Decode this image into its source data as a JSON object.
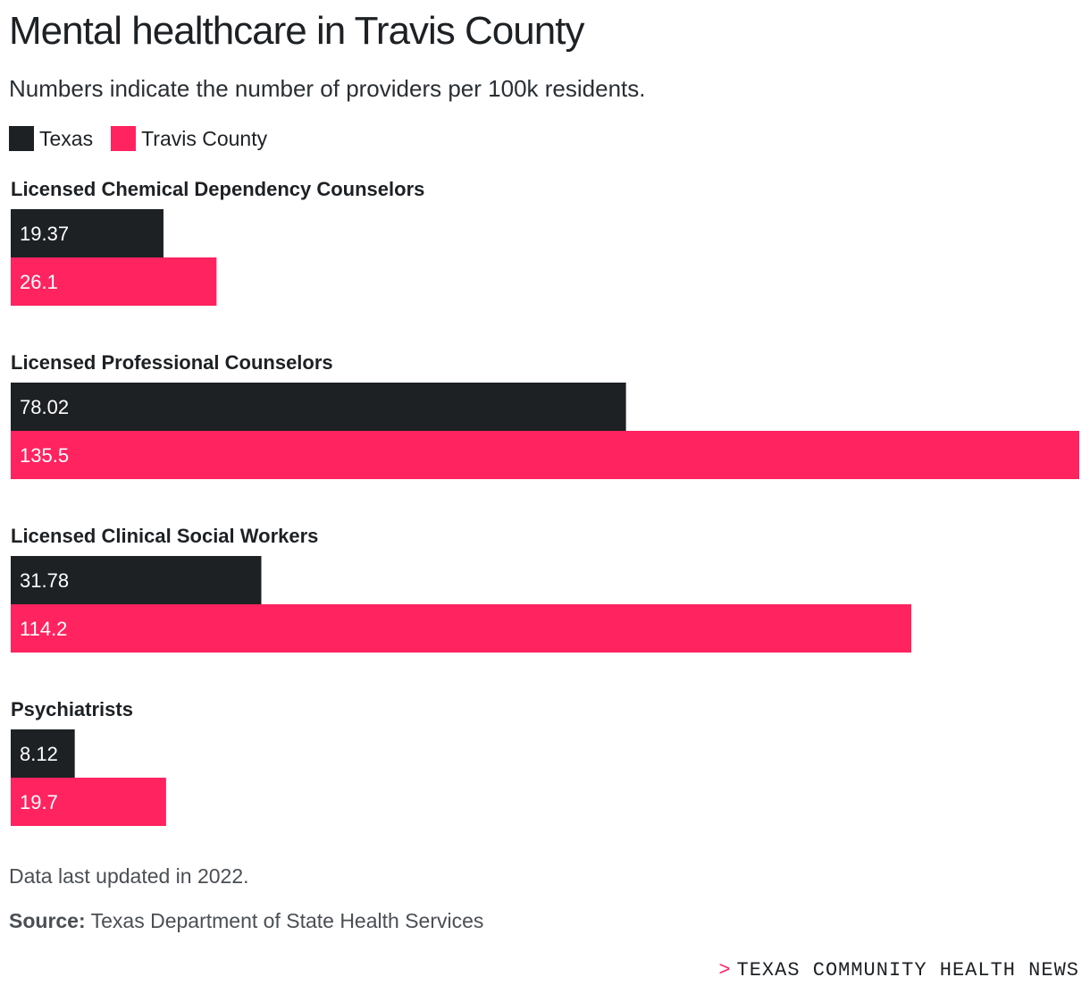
{
  "header": {
    "title": "Mental healthcare in Travis County",
    "subtitle": "Numbers indicate the number of providers per 100k residents."
  },
  "colors": {
    "texas": "#1d2124",
    "travis": "#ff2360"
  },
  "chart_data": {
    "type": "bar",
    "orientation": "horizontal",
    "title": "Mental healthcare in Travis County",
    "subtitle": "Numbers indicate the number of providers per 100k residents.",
    "categories": [
      "Licensed Chemical Dependency Counselors",
      "Licensed Professional Counselors",
      "Licensed Clinical Social Workers",
      "Psychiatrists"
    ],
    "series": [
      {
        "name": "Texas",
        "color": "#1d2124",
        "values": [
          19.37,
          78.02,
          31.78,
          8.12
        ]
      },
      {
        "name": "Travis County",
        "color": "#ff2360",
        "values": [
          26.1,
          135.5,
          114.2,
          19.7
        ]
      }
    ],
    "xlim": [
      0,
      135.5
    ],
    "grid": false,
    "legend": "top-left",
    "data_labels": true
  },
  "footer": {
    "note": "Data last updated in 2022.",
    "source_label": "Source:",
    "source_text": "Texas Department of State Health Services",
    "brand_mark": ">",
    "brand": "TEXAS COMMUNITY HEALTH NEWS"
  }
}
